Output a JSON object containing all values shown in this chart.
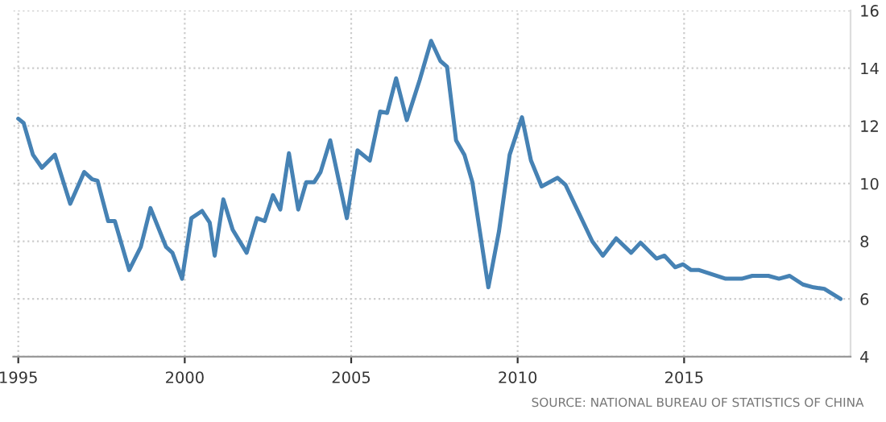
{
  "chart_data": {
    "type": "line",
    "color": "#4682b4",
    "x": [
      1995.0,
      1995.16,
      1995.44,
      1995.71,
      1996.1,
      1996.56,
      1996.98,
      1997.22,
      1997.38,
      1997.7,
      1997.9,
      1998.33,
      1998.68,
      1998.97,
      1999.44,
      1999.63,
      1999.92,
      2000.2,
      2000.52,
      2000.75,
      2000.9,
      2001.16,
      2001.44,
      2001.86,
      2002.17,
      2002.4,
      2002.65,
      2002.87,
      2003.13,
      2003.41,
      2003.65,
      2003.89,
      2004.08,
      2004.37,
      2004.87,
      2005.19,
      2005.56,
      2005.87,
      2006.08,
      2006.35,
      2006.67,
      2007.06,
      2007.4,
      2007.68,
      2007.88,
      2008.15,
      2008.4,
      2008.64,
      2009.12,
      2009.44,
      2009.76,
      2010.13,
      2010.4,
      2010.72,
      2011.2,
      2011.44,
      2012.24,
      2012.56,
      2012.96,
      2013.41,
      2013.69,
      2014.17,
      2014.41,
      2014.73,
      2014.97,
      2015.21,
      2015.45,
      2016.25,
      2016.73,
      2017.05,
      2017.53,
      2017.85,
      2018.17,
      2018.57,
      2018.89,
      2019.21,
      2019.7
    ],
    "values": [
      12.25,
      12.1,
      11.0,
      10.55,
      11.0,
      9.3,
      10.4,
      10.15,
      10.1,
      8.7,
      8.7,
      7.0,
      7.8,
      9.15,
      7.8,
      7.6,
      6.7,
      8.8,
      9.05,
      8.65,
      7.5,
      9.45,
      8.4,
      7.6,
      8.8,
      8.7,
      9.6,
      9.1,
      11.05,
      9.1,
      10.05,
      10.05,
      10.4,
      11.5,
      8.8,
      11.15,
      10.8,
      12.5,
      12.45,
      13.65,
      12.2,
      13.6,
      14.95,
      14.25,
      14.05,
      11.5,
      11.0,
      10.05,
      6.4,
      8.35,
      11.0,
      12.3,
      10.8,
      9.9,
      10.2,
      9.95,
      8.0,
      7.5,
      8.1,
      7.6,
      7.95,
      7.4,
      7.5,
      7.1,
      7.2,
      7.0,
      7.0,
      6.7,
      6.7,
      6.8,
      6.8,
      6.7,
      6.8,
      6.5,
      6.4,
      6.35,
      6.0
    ],
    "xlim": [
      1994.85,
      2020.0
    ],
    "xticks": [
      1995,
      2000,
      2005,
      2010,
      2015
    ],
    "ylim": [
      4,
      16
    ],
    "yticks": [
      4,
      6,
      8,
      10,
      12,
      14,
      16
    ],
    "grid": true,
    "marker": "none",
    "line_style": "solid",
    "annotations": [
      "SOURCE: NATIONAL BUREAU OF STATISTICS OF CHINA"
    ]
  }
}
